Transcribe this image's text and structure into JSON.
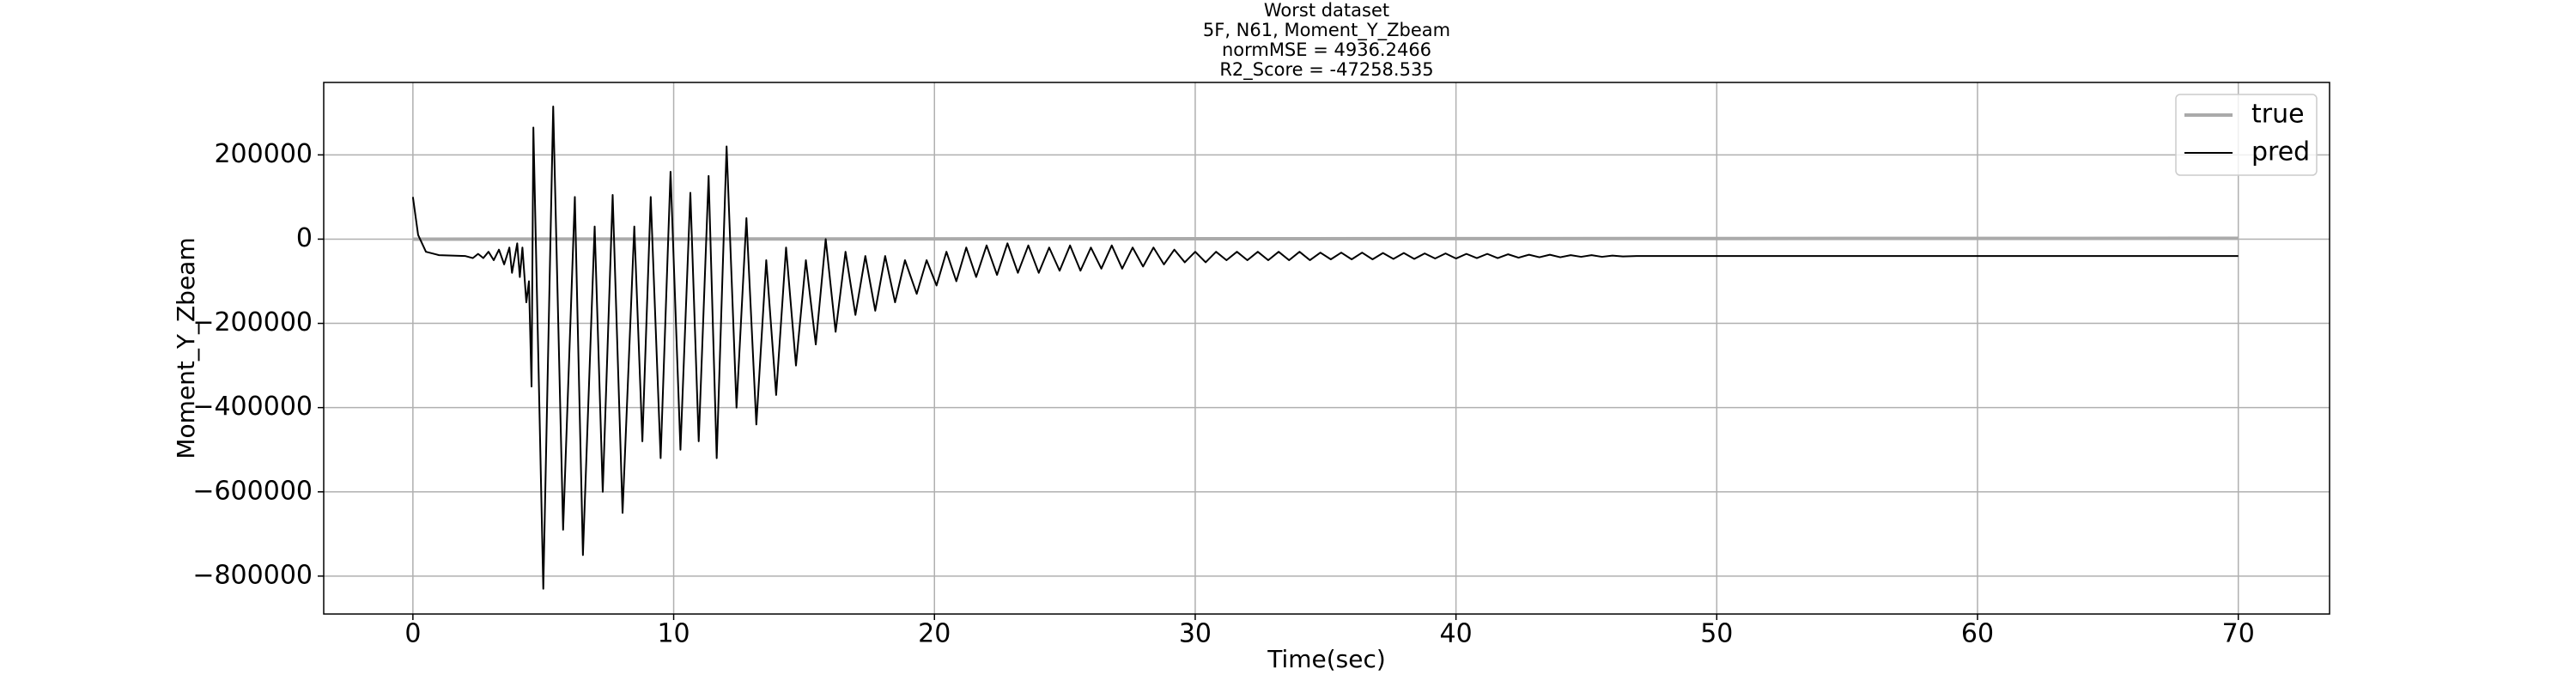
{
  "chart_data": {
    "type": "line",
    "title": [
      "Worst dataset",
      "5F, N61, Moment_Y_Zbeam",
      "normMSE = 4936.2466",
      "R2_Score = -47258.535"
    ],
    "xlabel": "Time(sec)",
    "ylabel": "Moment_Y_Zbeam",
    "xlim": [
      -3.42,
      73.5
    ],
    "ylim": [
      -890000,
      372000
    ],
    "xticks": [
      0,
      10,
      20,
      30,
      40,
      50,
      60,
      70
    ],
    "yticks": [
      {
        "value": -800000,
        "label": "−800000"
      },
      {
        "value": -600000,
        "label": "−600000"
      },
      {
        "value": -400000,
        "label": "−400000"
      },
      {
        "value": -200000,
        "label": "−200000"
      },
      0,
      200000
    ],
    "grid": true,
    "legend": "upper right",
    "series": [
      {
        "name": "true",
        "color": "#aaaaaa",
        "width": 4,
        "x": [
          0,
          70
        ],
        "values": [
          0,
          2000
        ]
      },
      {
        "name": "pred",
        "color": "#000000",
        "width": 2,
        "x": [
          0,
          0.2,
          0.5,
          1.0,
          2.0,
          2.3,
          2.5,
          2.7,
          2.9,
          3.1,
          3.3,
          3.5,
          3.7,
          3.8,
          4.0,
          4.1,
          4.2,
          4.35,
          4.45,
          4.55,
          4.62,
          5.0,
          5.38,
          5.76,
          6.21,
          6.52,
          6.97,
          7.28,
          7.66,
          8.04,
          8.49,
          8.8,
          9.12,
          9.5,
          9.88,
          10.26,
          10.64,
          10.96,
          11.34,
          11.65,
          12.03,
          12.41,
          12.79,
          13.17,
          13.55,
          13.93,
          14.31,
          14.69,
          15.07,
          15.45,
          15.83,
          16.21,
          16.59,
          16.97,
          17.35,
          17.73,
          18.11,
          18.49,
          18.87,
          19.32,
          19.7,
          20.08,
          20.46,
          20.84,
          21.22,
          21.6,
          22.0,
          22.4,
          22.8,
          23.2,
          23.6,
          24.0,
          24.4,
          24.8,
          25.2,
          25.6,
          26.0,
          26.4,
          26.8,
          27.2,
          27.6,
          28.0,
          28.4,
          28.8,
          29.2,
          29.6,
          30.0,
          30.4,
          30.8,
          31.2,
          31.6,
          32.0,
          32.4,
          32.8,
          33.2,
          33.6,
          34.0,
          34.4,
          34.8,
          35.2,
          35.6,
          36.0,
          36.4,
          36.8,
          37.2,
          37.6,
          38.0,
          38.4,
          38.8,
          39.2,
          39.6,
          40.0,
          40.4,
          40.8,
          41.2,
          41.6,
          42.0,
          42.4,
          42.8,
          43.2,
          43.6,
          44.0,
          44.4,
          44.8,
          45.2,
          45.6,
          46.0,
          46.4,
          47,
          70
        ],
        "values": [
          100000,
          10000,
          -30000,
          -38000,
          -40000,
          -45000,
          -35000,
          -45000,
          -30000,
          -50000,
          -25000,
          -60000,
          -20000,
          -80000,
          -10000,
          -90000,
          -20000,
          -150000,
          -100000,
          -350000,
          265000,
          -830000,
          315000,
          -690000,
          100000,
          -750000,
          30000,
          -600000,
          105000,
          -650000,
          30000,
          -480000,
          100000,
          -520000,
          160000,
          -500000,
          110000,
          -480000,
          150000,
          -520000,
          220000,
          -400000,
          50000,
          -440000,
          -50000,
          -370000,
          -20000,
          -300000,
          -50000,
          -250000,
          0,
          -220000,
          -30000,
          -180000,
          -40000,
          -170000,
          -40000,
          -150000,
          -50000,
          -130000,
          -50000,
          -110000,
          -30000,
          -100000,
          -20000,
          -90000,
          -15000,
          -85000,
          -10000,
          -80000,
          -15000,
          -80000,
          -20000,
          -75000,
          -15000,
          -75000,
          -20000,
          -70000,
          -15000,
          -70000,
          -20000,
          -65000,
          -20000,
          -60000,
          -25000,
          -55000,
          -30000,
          -55000,
          -30000,
          -50000,
          -30000,
          -50000,
          -30000,
          -50000,
          -30000,
          -50000,
          -30000,
          -50000,
          -32000,
          -48000,
          -32000,
          -48000,
          -32000,
          -48000,
          -33000,
          -47000,
          -33000,
          -47000,
          -34000,
          -46000,
          -34000,
          -46000,
          -35000,
          -45000,
          -35000,
          -45000,
          -36000,
          -44000,
          -37000,
          -43000,
          -37000,
          -43000,
          -38000,
          -42000,
          -38000,
          -42000,
          -39000,
          -41000,
          -40000,
          -40000
        ]
      }
    ]
  }
}
